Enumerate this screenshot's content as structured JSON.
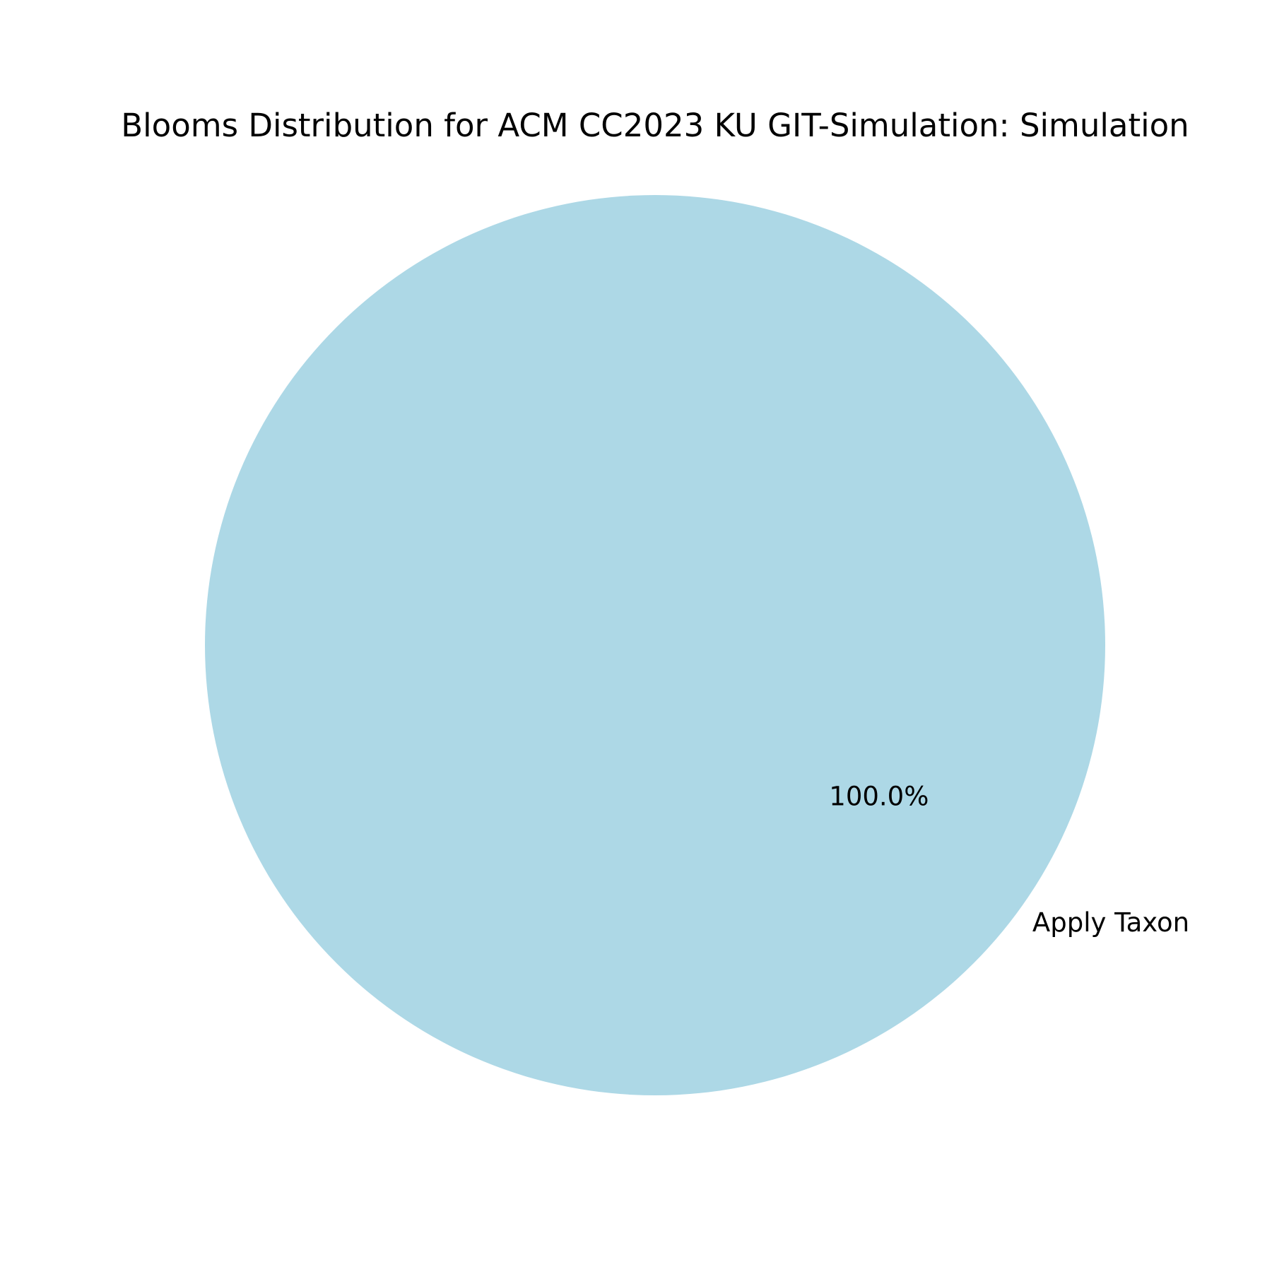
{
  "chart_data": {
    "type": "pie",
    "title": "Blooms Distribution for ACM CC2023 KU GIT-Simulation: Simulation",
    "slices": [
      {
        "label": "Apply Taxon",
        "value": 100.0,
        "percent_label": "100.0%",
        "color": "#add8e6"
      }
    ],
    "legend": "none"
  }
}
